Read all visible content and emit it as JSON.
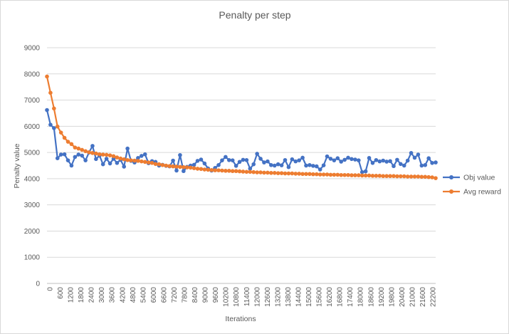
{
  "chart_data": {
    "type": "line",
    "title": "Penalty per step",
    "xlabel": "Iterations",
    "ylabel": "Penalty value",
    "ylim": [
      0,
      9000
    ],
    "y_ticks": [
      "0",
      "1000",
      "2000",
      "3000",
      "4000",
      "5000",
      "6000",
      "7000",
      "8000",
      "9000"
    ],
    "x_tick_labels": [
      "0",
      "600",
      "1200",
      "1800",
      "2400",
      "3000",
      "3600",
      "4200",
      "4800",
      "5400",
      "6000",
      "6600",
      "7200",
      "7800",
      "8400",
      "9000",
      "9600",
      "10200",
      "10800",
      "11400",
      "12000",
      "12600",
      "13200",
      "13800",
      "14400",
      "15000",
      "15600",
      "16200",
      "16800",
      "17400",
      "18000",
      "18600",
      "19200",
      "19800",
      "20400",
      "21000",
      "21600",
      "22200"
    ],
    "grid": true,
    "legend_position": "right",
    "series": [
      {
        "name": "Obj value",
        "color": "#4472c4",
        "values": [
          6620,
          6060,
          5930,
          4780,
          4920,
          4930,
          4700,
          4500,
          4830,
          4920,
          4880,
          4700,
          5000,
          5250,
          4750,
          4880,
          4550,
          4760,
          4580,
          4760,
          4600,
          4720,
          4460,
          5150,
          4680,
          4620,
          4790,
          4870,
          4930,
          4590,
          4670,
          4640,
          4500,
          4530,
          4490,
          4470,
          4690,
          4310,
          4900,
          4290,
          4450,
          4500,
          4530,
          4680,
          4730,
          4580,
          4390,
          4310,
          4410,
          4520,
          4700,
          4830,
          4710,
          4700,
          4490,
          4640,
          4720,
          4710,
          4380,
          4550,
          4950,
          4760,
          4620,
          4660,
          4520,
          4500,
          4550,
          4510,
          4710,
          4440,
          4740,
          4660,
          4700,
          4800,
          4500,
          4520,
          4490,
          4470,
          4350,
          4510,
          4850,
          4760,
          4700,
          4780,
          4650,
          4720,
          4800,
          4750,
          4730,
          4700,
          4250,
          4280,
          4790,
          4600,
          4710,
          4660,
          4690,
          4650,
          4670,
          4480,
          4720,
          4560,
          4500,
          4690,
          4980,
          4800,
          4920,
          4500,
          4520,
          4780,
          4600,
          4620
        ]
      },
      {
        "name": "Avg reward",
        "color": "#ed7d31",
        "values": [
          7900,
          7280,
          6680,
          5990,
          5760,
          5560,
          5410,
          5320,
          5190,
          5150,
          5100,
          5050,
          5010,
          4980,
          4960,
          4930,
          4920,
          4910,
          4890,
          4860,
          4810,
          4770,
          4740,
          4710,
          4700,
          4690,
          4680,
          4660,
          4640,
          4620,
          4600,
          4560,
          4550,
          4520,
          4500,
          4480,
          4470,
          4460,
          4450,
          4440,
          4430,
          4420,
          4400,
          4380,
          4370,
          4350,
          4340,
          4330,
          4320,
          4320,
          4310,
          4300,
          4300,
          4290,
          4290,
          4280,
          4270,
          4260,
          4260,
          4250,
          4240,
          4240,
          4230,
          4230,
          4220,
          4220,
          4210,
          4210,
          4200,
          4200,
          4200,
          4190,
          4190,
          4180,
          4180,
          4180,
          4170,
          4170,
          4160,
          4160,
          4160,
          4150,
          4150,
          4150,
          4140,
          4140,
          4140,
          4130,
          4130,
          4130,
          4120,
          4120,
          4120,
          4110,
          4110,
          4110,
          4100,
          4100,
          4100,
          4100,
          4090,
          4090,
          4090,
          4080,
          4080,
          4080,
          4080,
          4070,
          4070,
          4060,
          4050,
          4020
        ]
      }
    ]
  }
}
